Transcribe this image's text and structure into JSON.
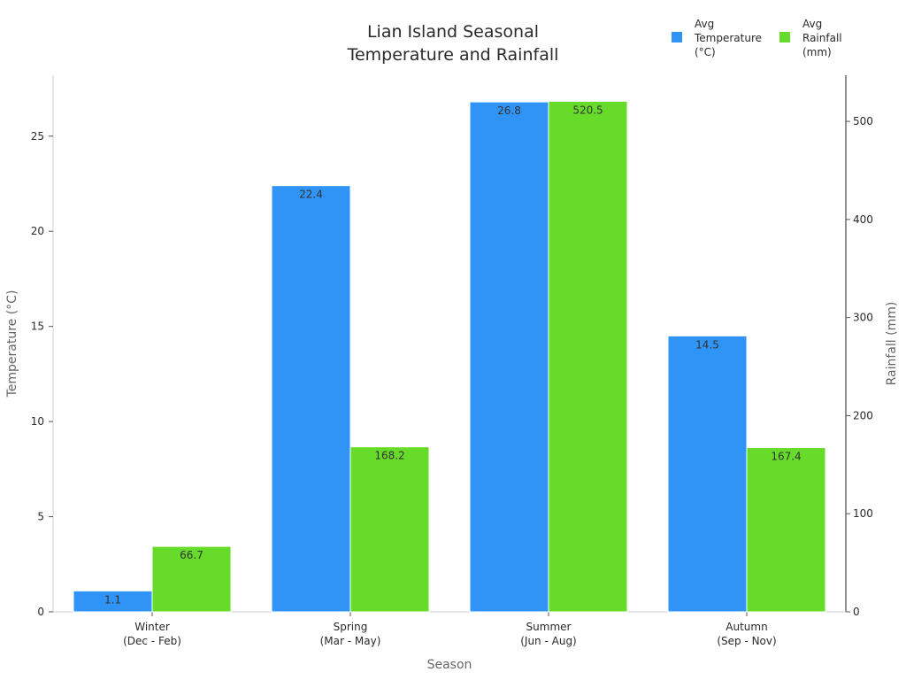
{
  "chart_data": {
    "type": "bar",
    "title": [
      "Lian Island Seasonal",
      "Temperature and Rainfall"
    ],
    "xlabel": "Season",
    "ylabel_left": "Temperature (°C)",
    "ylabel_right": "Rainfall (mm)",
    "categories": [
      [
        "Winter",
        "(Dec - Feb)"
      ],
      [
        "Spring",
        "(Mar - May)"
      ],
      [
        "Summer",
        "(Jun - Aug)"
      ],
      [
        "Autumn",
        "(Sep - Nov)"
      ]
    ],
    "series": [
      {
        "name": [
          "Avg",
          "Temperature",
          "(°C)"
        ],
        "axis": "left",
        "color": "#3094f6",
        "values": [
          1.1,
          22.4,
          26.8,
          14.5
        ]
      },
      {
        "name": [
          "Avg",
          "Rainfall",
          "(mm)"
        ],
        "axis": "right",
        "color": "#66db29",
        "values": [
          66.7,
          168.2,
          520.5,
          167.4
        ]
      }
    ],
    "ylim_left": [
      0,
      28.2
    ],
    "ylim_right": [
      0,
      547
    ],
    "yticks_left": [
      0,
      5,
      10,
      15,
      20,
      25
    ],
    "yticks_right": [
      0,
      100,
      200,
      300,
      400,
      500
    ],
    "grid": false,
    "legend_position": "top-right"
  }
}
